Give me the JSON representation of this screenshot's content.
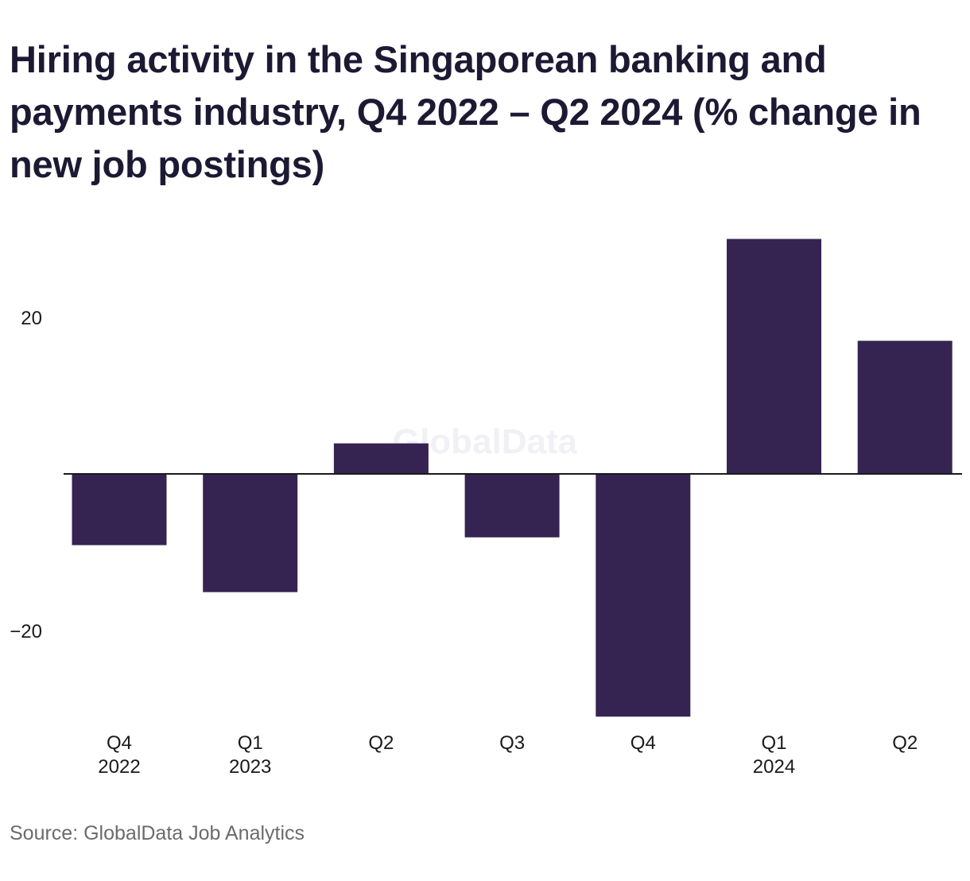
{
  "title": "Hiring activity in the Singaporean banking and payments industry, Q4 2022 – Q2 2024 (% change in new job postings)",
  "source": "Source: GlobalData Job Analytics",
  "watermark": "GlobalData",
  "colors": {
    "bar": "#352451",
    "zero_line": "#1a1a1a",
    "text": "#1c1a33",
    "source_text": "#6b6b6b"
  },
  "chart_data": {
    "type": "bar",
    "categories": [
      [
        "Q4",
        "2022"
      ],
      [
        "Q1",
        "2023"
      ],
      [
        "Q2",
        ""
      ],
      [
        "Q3",
        ""
      ],
      [
        "Q4",
        ""
      ],
      [
        "Q1",
        "2024"
      ],
      [
        "Q2",
        ""
      ]
    ],
    "values": [
      -9.1,
      -15.1,
      3.9,
      -8.1,
      -31.0,
      30.0,
      17.0
    ],
    "title": "Hiring activity in the Singaporean banking and payments industry, Q4 2022 – Q2 2024 (% change in new job postings)",
    "xlabel": "",
    "ylabel": "",
    "ylim": [
      -31,
      30
    ],
    "yticks": [
      -20,
      20
    ],
    "ytick_labels": [
      "−20",
      "20"
    ],
    "grid": false,
    "legend": "none"
  }
}
